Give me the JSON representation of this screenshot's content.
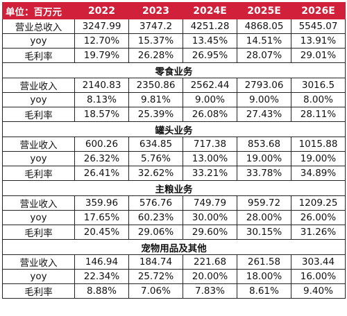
{
  "table": {
    "header": {
      "unit_label": "单位：百万元",
      "years": [
        "2022",
        "2023",
        "2024E",
        "2025E",
        "2026E"
      ]
    },
    "total": {
      "rows": [
        {
          "label": "营业总收入",
          "values": [
            "3247.99",
            "3747.2",
            "4251.28",
            "4868.05",
            "5545.07"
          ]
        },
        {
          "label": "yoy",
          "values": [
            "12.70%",
            "15.37%",
            "13.45%",
            "14.51%",
            "13.91%"
          ]
        },
        {
          "label": "毛利率",
          "values": [
            "19.79%",
            "26.28%",
            "26.95%",
            "28.07%",
            "29.01%"
          ]
        }
      ]
    },
    "sections": [
      {
        "title": "零食业务",
        "rows": [
          {
            "label": "营业收入",
            "values": [
              "2140.83",
              "2350.86",
              "2562.44",
              "2793.06",
              "3016.5"
            ]
          },
          {
            "label": "yoy",
            "values": [
              "8.13%",
              "9.81%",
              "9.00%",
              "9.00%",
              "8.00%"
            ]
          },
          {
            "label": "毛利率",
            "values": [
              "18.57%",
              "25.39%",
              "26.08%",
              "27.43%",
              "28.11%"
            ]
          }
        ]
      },
      {
        "title": "罐头业务",
        "rows": [
          {
            "label": "营业收入",
            "values": [
              "600.26",
              "634.85",
              "717.38",
              "853.68",
              "1015.88"
            ]
          },
          {
            "label": "yoy",
            "values": [
              "26.32%",
              "5.76%",
              "13.00%",
              "19.00%",
              "19.00%"
            ]
          },
          {
            "label": "毛利率",
            "values": [
              "26.41%",
              "32.62%",
              "33.21%",
              "33.78%",
              "34.89%"
            ]
          }
        ]
      },
      {
        "title": "主粮业务",
        "rows": [
          {
            "label": "营业收入",
            "values": [
              "359.96",
              "576.76",
              "749.79",
              "959.72",
              "1209.25"
            ]
          },
          {
            "label": "yoy",
            "values": [
              "17.65%",
              "60.23%",
              "30.00%",
              "28.00%",
              "26.00%"
            ]
          },
          {
            "label": "毛利率",
            "values": [
              "20.45%",
              "29.06%",
              "29.60%",
              "30.15%",
              "31.26%"
            ]
          }
        ]
      },
      {
        "title": "宠物用品及其他",
        "rows": [
          {
            "label": "营业收入",
            "values": [
              "146.94",
              "184.74",
              "221.68",
              "261.58",
              "303.44"
            ]
          },
          {
            "label": "yoy",
            "values": [
              "22.34%",
              "25.72%",
              "20.00%",
              "18.00%",
              "16.00%"
            ]
          },
          {
            "label": "毛利率",
            "values": [
              "8.88%",
              "7.06%",
              "7.83%",
              "8.61%",
              "9.40%"
            ]
          }
        ]
      }
    ]
  },
  "colors": {
    "header_bg": "#d0203a",
    "header_text": "#ffffff",
    "border": "#222222"
  }
}
